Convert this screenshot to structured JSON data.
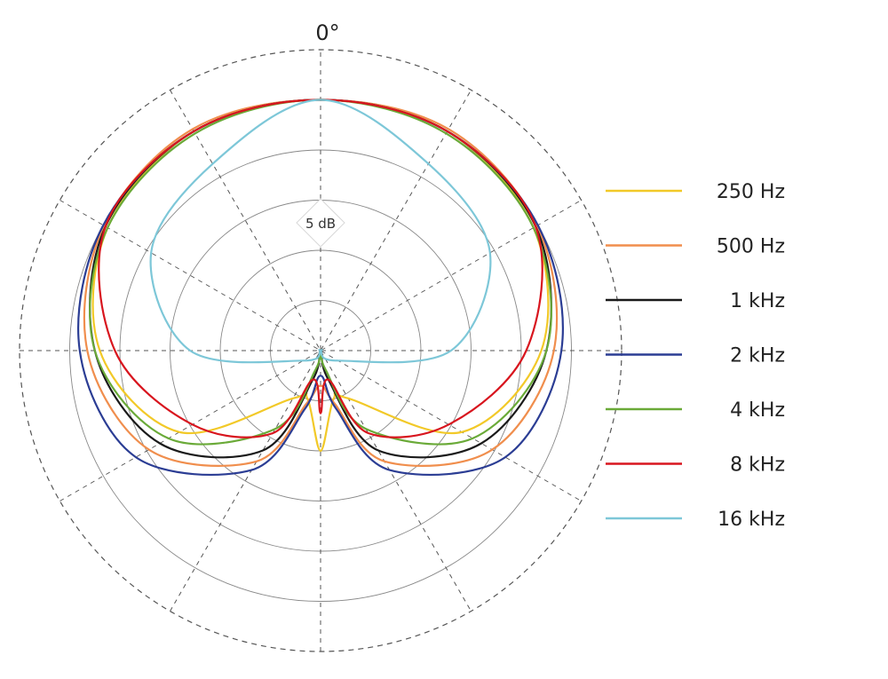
{
  "chart_data": {
    "type": "polar",
    "title": "",
    "angle_label": "0°",
    "scale_label": "5 dB",
    "radial_ring_count": 6,
    "spoke_step_deg": 30,
    "series": [
      {
        "name": "250 Hz",
        "color": "#f2c928",
        "angles_deg": [
          0,
          30,
          60,
          90,
          120,
          150,
          165,
          180
        ],
        "radius_rings": [
          5.0,
          5.05,
          4.9,
          4.4,
          3.25,
          1.1,
          1.0,
          2.0
        ]
      },
      {
        "name": "500 Hz",
        "color": "#f08e4d",
        "angles_deg": [
          0,
          30,
          60,
          90,
          120,
          150,
          165,
          180
        ],
        "radius_rings": [
          5.0,
          5.1,
          4.98,
          4.65,
          3.95,
          2.55,
          1.1,
          0.7
        ]
      },
      {
        "name": "1 kHz",
        "color": "#1a1a1a",
        "angles_deg": [
          0,
          30,
          60,
          90,
          120,
          150,
          165,
          180
        ],
        "radius_rings": [
          5.0,
          5.05,
          4.95,
          4.5,
          3.7,
          2.3,
          0.6,
          0.0
        ]
      },
      {
        "name": "2 kHz",
        "color": "#2b3d94",
        "angles_deg": [
          0,
          30,
          60,
          90,
          120,
          150,
          165,
          180
        ],
        "radius_rings": [
          5.0,
          5.05,
          5.0,
          4.8,
          4.25,
          2.75,
          1.2,
          0.5
        ]
      },
      {
        "name": "4 kHz",
        "color": "#6aaa38",
        "angles_deg": [
          0,
          30,
          60,
          90,
          120,
          150,
          165,
          180
        ],
        "radius_rings": [
          5.0,
          5.0,
          4.9,
          4.5,
          3.5,
          1.8,
          0.4,
          0.0
        ]
      },
      {
        "name": "8 kHz",
        "color": "#d8151e",
        "angles_deg": [
          0,
          30,
          60,
          90,
          120,
          150,
          165,
          180
        ],
        "radius_rings": [
          5.0,
          5.05,
          4.95,
          4.1,
          2.95,
          1.9,
          0.6,
          1.25
        ]
      },
      {
        "name": "16 kHz",
        "color": "#7dc7d8",
        "angles_deg": [
          0,
          30,
          60,
          90,
          120,
          150,
          165,
          180
        ],
        "radius_rings": [
          5.0,
          4.3,
          3.9,
          2.6,
          0.4,
          0.0,
          0.0,
          0.0
        ]
      }
    ],
    "legend_position": "right",
    "grid": true
  }
}
